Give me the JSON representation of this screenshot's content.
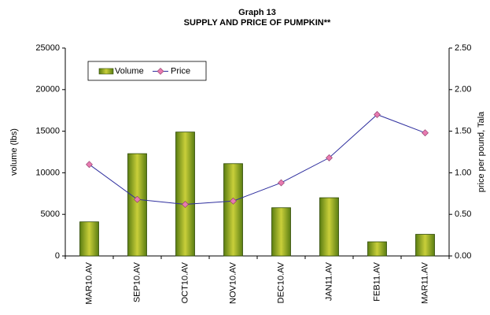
{
  "chart_data": {
    "type": "bar-line",
    "title": "Graph 13",
    "subtitle": "SUPPLY AND PRICE OF PUMPKIN**",
    "y_label": "volume (lbs)",
    "y2_label": "price per pound, Tala",
    "categories": [
      "MAR10.AV",
      "SEP10.AV",
      "OCT10.AV",
      "NOV10.AV",
      "DEC10.AV",
      "JAN11.AV",
      "FEB11.AV",
      "MAR11.AV"
    ],
    "series": [
      {
        "name": "Volume",
        "type": "bar",
        "color": "#5a7d12",
        "values": [
          4100,
          12300,
          14900,
          11100,
          5800,
          7000,
          1700,
          2600
        ]
      },
      {
        "name": "Price",
        "type": "line",
        "axis": "y2",
        "color": "#2e2e9e",
        "marker_color": "#e87ab0",
        "values": [
          1.1,
          0.68,
          0.62,
          0.66,
          0.88,
          1.18,
          1.7,
          1.48
        ]
      }
    ],
    "ylim": [
      0,
      25000
    ],
    "yticks": [
      0,
      5000,
      10000,
      15000,
      20000,
      25000
    ],
    "y2lim": [
      0,
      2.5
    ],
    "y2ticks": [
      {
        "value": 0,
        "label": "0.00"
      },
      {
        "value": 0.5,
        "label": "0.50"
      },
      {
        "value": 1,
        "label": "1.00"
      },
      {
        "value": 1.5,
        "label": "1.50"
      },
      {
        "value": 2,
        "label": "2.00"
      },
      {
        "value": 2.5,
        "label": "2.50"
      }
    ],
    "legend": "top-left"
  }
}
